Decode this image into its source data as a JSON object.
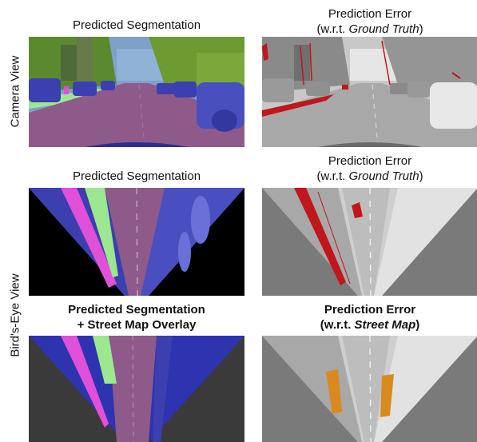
{
  "row_labels": {
    "camera": "Camera View",
    "birds_eye": "Bird's-Eye View"
  },
  "rows": [
    {
      "left_title": {
        "line1": "Predicted Segmentation",
        "line2": ""
      },
      "right_title": {
        "line1": "Prediction Error",
        "line2_prefix": "(w.r.t. ",
        "line2_emph": "Ground Truth",
        "line2_suffix": ")"
      }
    },
    {
      "left_title": {
        "line1": "Predicted Segmentation",
        "line2": ""
      },
      "right_title": {
        "line1": "Prediction Error",
        "line2_prefix": "(w.r.t. ",
        "line2_emph": "Ground Truth",
        "line2_suffix": ")"
      }
    },
    {
      "left_title": {
        "line1": "Predicted Segmentation",
        "line2": "+ Street Map Overlay"
      },
      "right_title": {
        "line1": "Prediction Error",
        "line2_prefix": "(w.r.t. ",
        "line2_emph": "Street Map",
        "line2_suffix": ")"
      }
    }
  ],
  "colors": {
    "road": "#8e5a8a",
    "vehicle": "#3b3fb0",
    "vegetation": "#5b8a2e",
    "sidewalk": "#e050d8",
    "terrain": "#9be890",
    "sky": "#7fa0c8",
    "error_gt": "#c0161c",
    "error_map": "#d98a1e",
    "gray_bg": "#7a7a7a",
    "dark_bg": "#3a3a3a"
  }
}
